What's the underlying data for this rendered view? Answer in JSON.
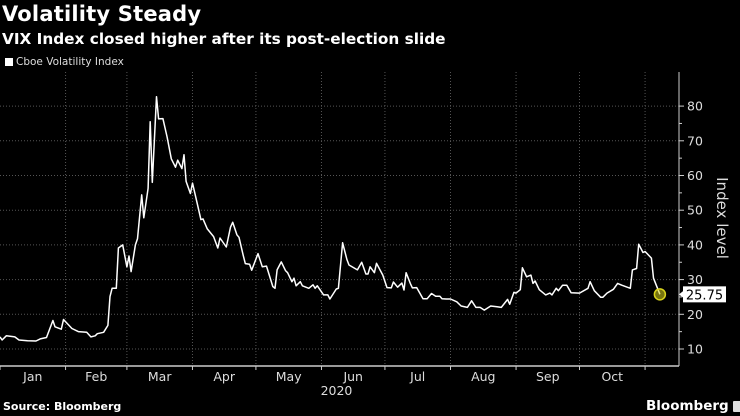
{
  "header": {
    "title": "Volatility Steady",
    "subtitle": "VIX Index closed higher after its post-election slide"
  },
  "footer": {
    "source": "Source: Bloomberg",
    "brand": "Bloomberg"
  },
  "colors": {
    "background": "#000000",
    "line": "#ffffff",
    "highlight": "#d9d31c"
  },
  "chart_data": {
    "type": "line",
    "title": "Volatility Steady",
    "subtitle": "VIX Index closed higher after its post-election slide",
    "legend": [
      "Cboe Volatility Index"
    ],
    "legend_position": "top-left",
    "ylabel": "Index level",
    "ylim": [
      5,
      85
    ],
    "yticks": [
      10,
      20,
      30,
      40,
      50,
      60,
      70,
      80
    ],
    "y_axis_side": "right",
    "xlim": [
      "2020-01-01",
      "2020-11-14"
    ],
    "xticks": [
      "Jan",
      "Feb",
      "Mar",
      "Apr",
      "May",
      "Jun",
      "Jul",
      "Aug",
      "Sep",
      "Oct"
    ],
    "x_year_label": "2020",
    "grid": true,
    "last_value_label": "25.75",
    "series": [
      {
        "name": "Cboe Volatility Index",
        "points": [
          [
            "2020-01-01",
            13.5
          ],
          [
            "2020-01-02",
            12.6
          ],
          [
            "2020-01-04",
            13.8
          ],
          [
            "2020-01-08",
            13.5
          ],
          [
            "2020-01-10",
            12.6
          ],
          [
            "2020-01-14",
            12.4
          ],
          [
            "2020-01-18",
            12.3
          ],
          [
            "2020-01-20",
            12.9
          ],
          [
            "2020-01-23",
            13.3
          ],
          [
            "2020-01-26",
            18.2
          ],
          [
            "2020-01-27",
            16.4
          ],
          [
            "2020-01-30",
            15.7
          ],
          [
            "2020-01-31",
            18.5
          ],
          [
            "2020-02-04",
            15.9
          ],
          [
            "2020-02-07",
            15.0
          ],
          [
            "2020-02-11",
            14.8
          ],
          [
            "2020-02-13",
            13.5
          ],
          [
            "2020-02-15",
            13.8
          ],
          [
            "2020-02-16",
            14.4
          ],
          [
            "2020-02-19",
            14.8
          ],
          [
            "2020-02-21",
            16.8
          ],
          [
            "2020-02-22",
            25.1
          ],
          [
            "2020-02-23",
            27.5
          ],
          [
            "2020-02-25",
            27.5
          ],
          [
            "2020-02-26",
            39.1
          ],
          [
            "2020-02-28",
            40.0
          ],
          [
            "2020-03-01",
            33.7
          ],
          [
            "2020-03-02",
            36.8
          ],
          [
            "2020-03-03",
            32.3
          ],
          [
            "2020-03-05",
            40.0
          ],
          [
            "2020-03-06",
            41.8
          ],
          [
            "2020-03-08",
            54.4
          ],
          [
            "2020-03-09",
            47.8
          ],
          [
            "2020-03-11",
            56.3
          ],
          [
            "2020-03-12",
            75.5
          ],
          [
            "2020-03-13",
            58.0
          ],
          [
            "2020-03-15",
            82.7
          ],
          [
            "2020-03-16",
            76.3
          ],
          [
            "2020-03-18",
            76.4
          ],
          [
            "2020-03-20",
            71.1
          ],
          [
            "2020-03-22",
            64.8
          ],
          [
            "2020-03-24",
            62.4
          ],
          [
            "2020-03-25",
            64.4
          ],
          [
            "2020-03-27",
            62.0
          ],
          [
            "2020-03-28",
            66.0
          ],
          [
            "2020-03-29",
            58.3
          ],
          [
            "2020-03-31",
            54.8
          ],
          [
            "2020-04-01",
            57.8
          ],
          [
            "2020-04-03",
            52.6
          ],
          [
            "2020-04-05",
            47.3
          ],
          [
            "2020-04-06",
            47.5
          ],
          [
            "2020-04-08",
            44.6
          ],
          [
            "2020-04-11",
            42.4
          ],
          [
            "2020-04-13",
            39.1
          ],
          [
            "2020-04-14",
            42.0
          ],
          [
            "2020-04-17",
            39.4
          ],
          [
            "2020-04-19",
            45.1
          ],
          [
            "2020-04-20",
            46.5
          ],
          [
            "2020-04-22",
            42.9
          ],
          [
            "2020-04-23",
            42.2
          ],
          [
            "2020-04-25",
            37.0
          ],
          [
            "2020-04-26",
            34.6
          ],
          [
            "2020-04-28",
            34.4
          ],
          [
            "2020-04-29",
            32.7
          ],
          [
            "2020-05-02",
            37.5
          ],
          [
            "2020-05-04",
            33.7
          ],
          [
            "2020-05-06",
            33.9
          ],
          [
            "2020-05-09",
            28.0
          ],
          [
            "2020-05-10",
            27.5
          ],
          [
            "2020-05-11",
            32.8
          ],
          [
            "2020-05-13",
            35.1
          ],
          [
            "2020-05-15",
            32.6
          ],
          [
            "2020-05-16",
            32.0
          ],
          [
            "2020-05-18",
            29.4
          ],
          [
            "2020-05-19",
            30.4
          ],
          [
            "2020-05-20",
            28.2
          ],
          [
            "2020-05-22",
            29.4
          ],
          [
            "2020-05-23",
            28.2
          ],
          [
            "2020-05-26",
            27.5
          ],
          [
            "2020-05-28",
            28.5
          ],
          [
            "2020-05-29",
            27.5
          ],
          [
            "2020-05-30",
            28.2
          ],
          [
            "2020-06-02",
            25.6
          ],
          [
            "2020-06-04",
            25.6
          ],
          [
            "2020-06-05",
            24.4
          ],
          [
            "2020-06-08",
            27.3
          ],
          [
            "2020-06-09",
            27.5
          ],
          [
            "2020-06-11",
            40.6
          ],
          [
            "2020-06-13",
            35.8
          ],
          [
            "2020-06-14",
            34.2
          ],
          [
            "2020-06-18",
            32.8
          ],
          [
            "2020-06-20",
            35.0
          ],
          [
            "2020-06-22",
            31.6
          ],
          [
            "2020-06-23",
            31.6
          ],
          [
            "2020-06-24",
            33.7
          ],
          [
            "2020-06-26",
            32.0
          ],
          [
            "2020-06-27",
            34.7
          ],
          [
            "2020-06-30",
            31.3
          ],
          [
            "2020-07-02",
            27.7
          ],
          [
            "2020-07-04",
            27.6
          ],
          [
            "2020-07-05",
            29.3
          ],
          [
            "2020-07-07",
            27.8
          ],
          [
            "2020-07-09",
            29.0
          ],
          [
            "2020-07-10",
            27.0
          ],
          [
            "2020-07-11",
            32.0
          ],
          [
            "2020-07-13",
            28.9
          ],
          [
            "2020-07-14",
            27.6
          ],
          [
            "2020-07-16",
            27.7
          ],
          [
            "2020-07-19",
            24.5
          ],
          [
            "2020-07-21",
            24.5
          ],
          [
            "2020-07-23",
            26.0
          ],
          [
            "2020-07-25",
            25.2
          ],
          [
            "2020-07-27",
            25.2
          ],
          [
            "2020-07-28",
            24.5
          ],
          [
            "2020-07-30",
            24.4
          ],
          [
            "2020-08-01",
            24.4
          ],
          [
            "2020-08-04",
            23.6
          ],
          [
            "2020-08-06",
            22.4
          ],
          [
            "2020-08-09",
            22.0
          ],
          [
            "2020-08-11",
            23.9
          ],
          [
            "2020-08-13",
            22.0
          ],
          [
            "2020-08-15",
            22.0
          ],
          [
            "2020-08-17",
            21.2
          ],
          [
            "2020-08-20",
            22.4
          ],
          [
            "2020-08-23",
            22.2
          ],
          [
            "2020-08-25",
            22.0
          ],
          [
            "2020-08-28",
            24.3
          ],
          [
            "2020-08-29",
            22.9
          ],
          [
            "2020-08-31",
            26.3
          ],
          [
            "2020-09-01",
            26.1
          ],
          [
            "2020-09-03",
            27.1
          ],
          [
            "2020-09-04",
            33.4
          ],
          [
            "2020-09-06",
            30.8
          ],
          [
            "2020-09-08",
            31.3
          ],
          [
            "2020-09-09",
            28.9
          ],
          [
            "2020-09-10",
            29.6
          ],
          [
            "2020-09-12",
            27.1
          ],
          [
            "2020-09-15",
            25.6
          ],
          [
            "2020-09-17",
            26.1
          ],
          [
            "2020-09-18",
            25.6
          ],
          [
            "2020-09-20",
            27.5
          ],
          [
            "2020-09-21",
            26.8
          ],
          [
            "2020-09-23",
            28.4
          ],
          [
            "2020-09-25",
            28.4
          ],
          [
            "2020-09-27",
            26.2
          ],
          [
            "2020-10-01",
            26.1
          ],
          [
            "2020-10-05",
            27.5
          ],
          [
            "2020-10-06",
            29.4
          ],
          [
            "2020-10-08",
            26.8
          ],
          [
            "2020-10-11",
            24.9
          ],
          [
            "2020-10-12",
            24.9
          ],
          [
            "2020-10-14",
            26.1
          ],
          [
            "2020-10-17",
            27.2
          ],
          [
            "2020-10-19",
            28.9
          ],
          [
            "2020-10-21",
            28.4
          ],
          [
            "2020-10-25",
            27.5
          ],
          [
            "2020-10-26",
            32.8
          ],
          [
            "2020-10-28",
            33.2
          ],
          [
            "2020-10-29",
            40.2
          ],
          [
            "2020-10-31",
            37.8
          ],
          [
            "2020-11-01",
            38.1
          ],
          [
            "2020-11-04",
            36.2
          ],
          [
            "2020-11-05",
            30.4
          ],
          [
            "2020-11-08",
            25.75
          ]
        ]
      }
    ]
  }
}
